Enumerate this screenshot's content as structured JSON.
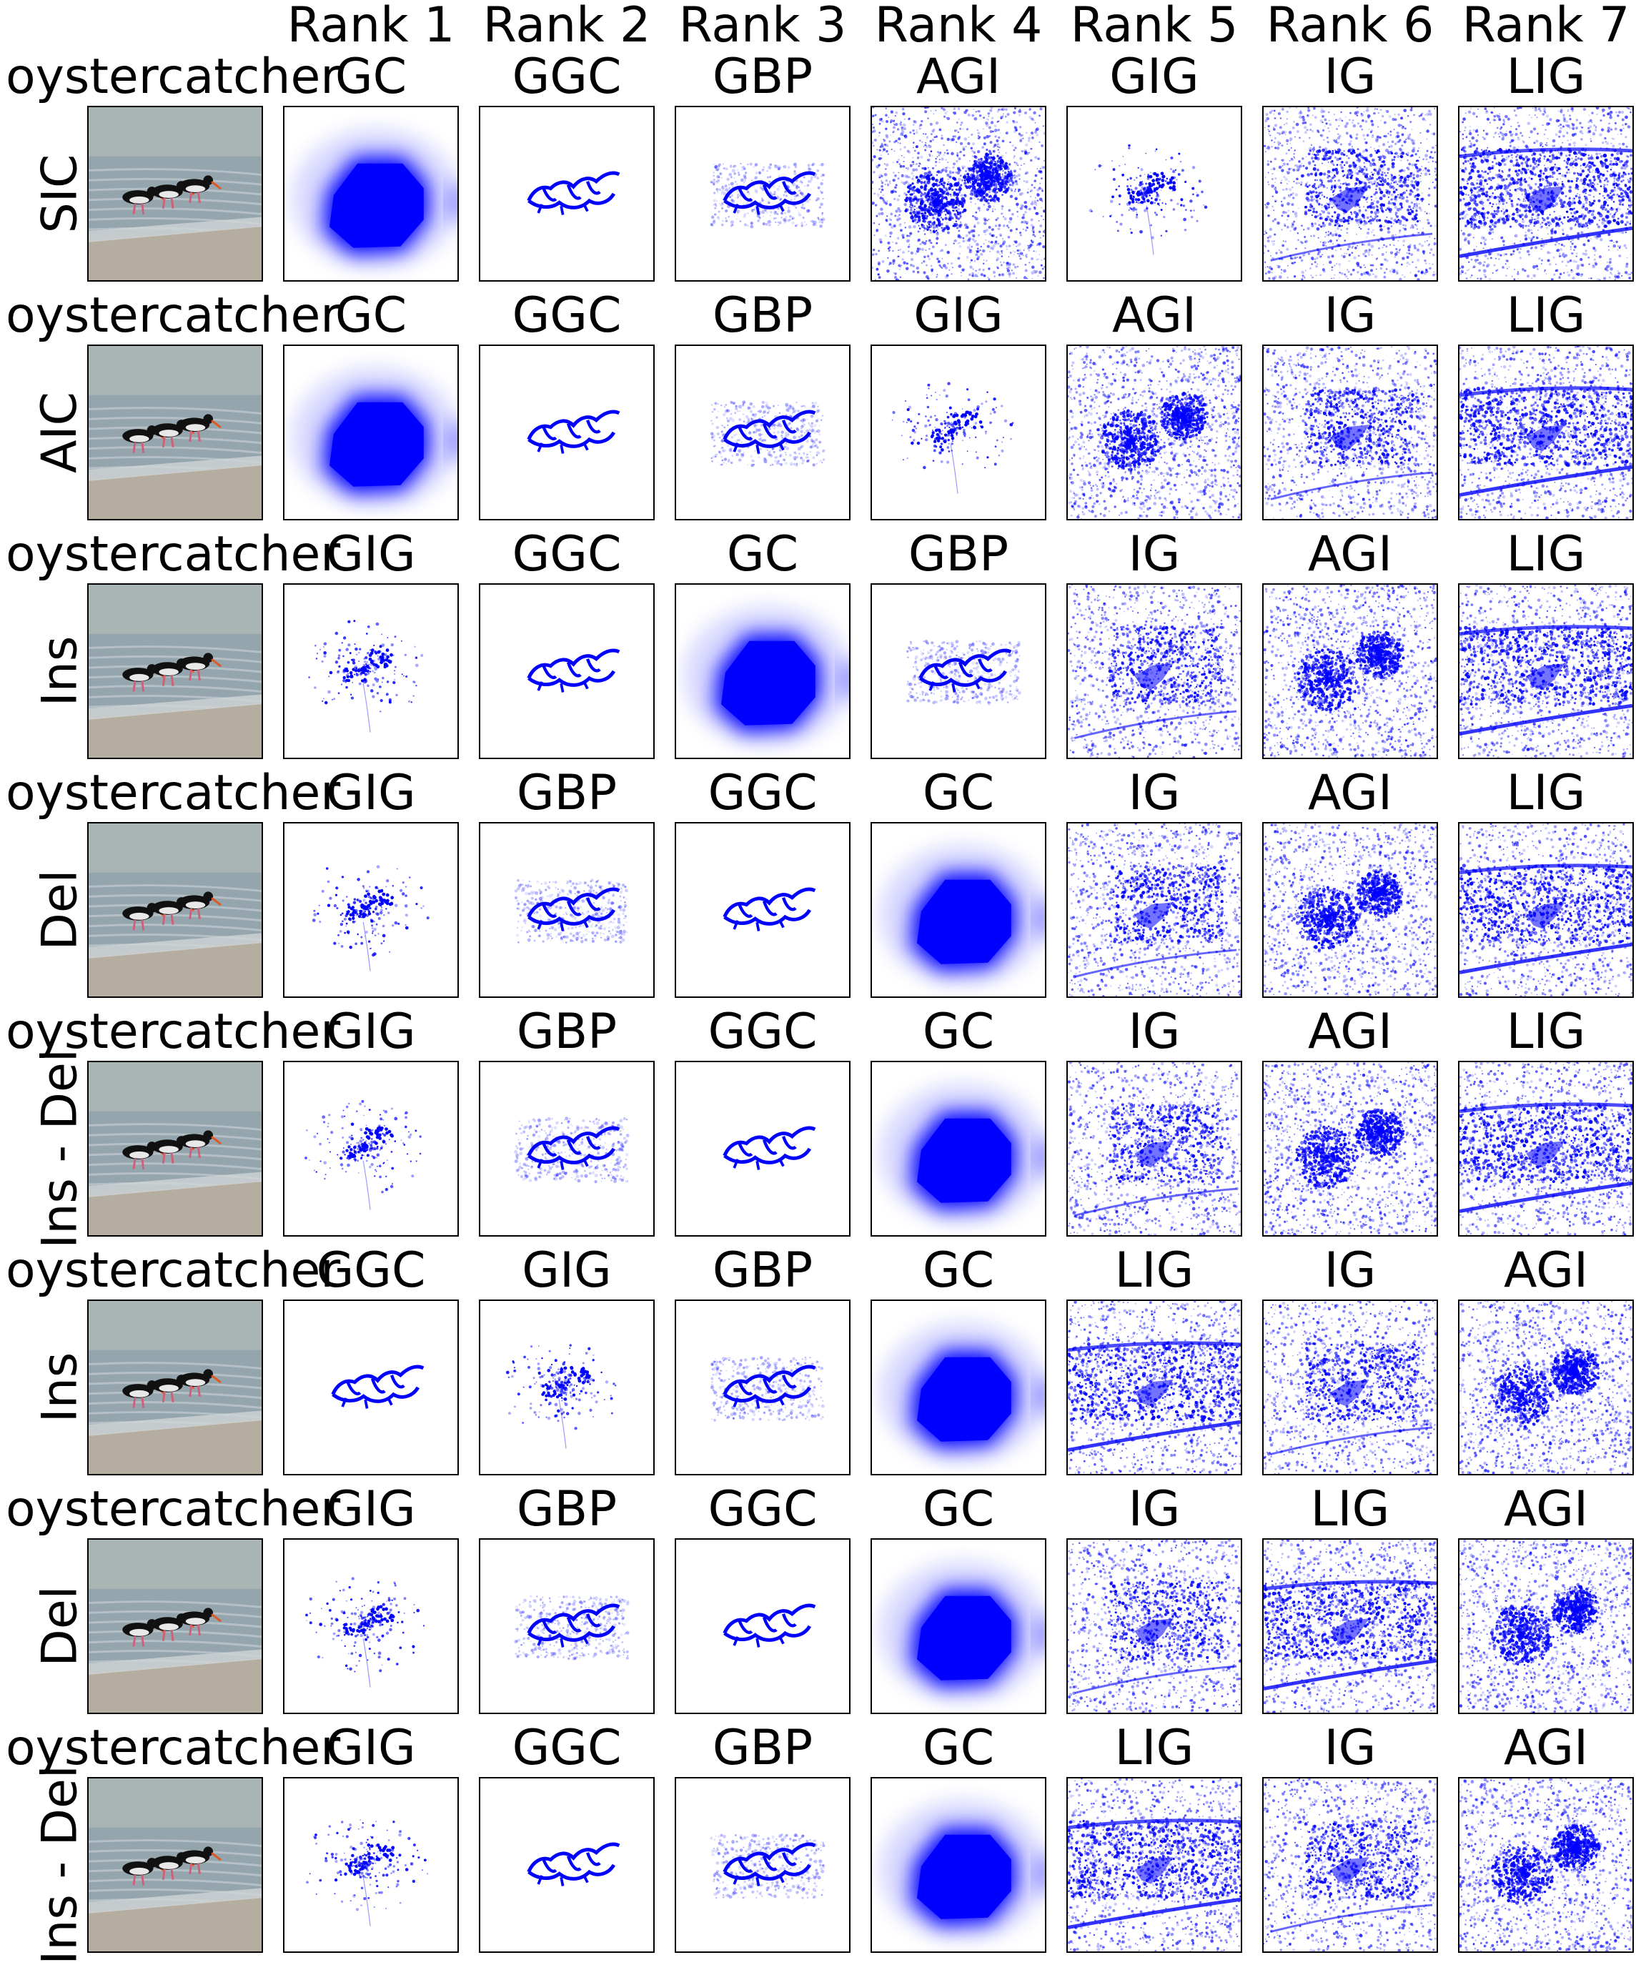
{
  "class_label": "oystercatcher",
  "rank_headers": [
    "Rank 1",
    "Rank 2",
    "Rank 3",
    "Rank 4",
    "Rank 5",
    "Rank 6",
    "Rank 7"
  ],
  "colors": {
    "saliency": "#0000ff",
    "background": "#ffffff",
    "frame": "#000000"
  },
  "rows": [
    {
      "metric": "SIC",
      "methods": [
        "GC",
        "GGC",
        "GBP",
        "AGI",
        "GIG",
        "IG",
        "LIG"
      ]
    },
    {
      "metric": "AIC",
      "methods": [
        "GC",
        "GGC",
        "GBP",
        "GIG",
        "AGI",
        "IG",
        "LIG"
      ]
    },
    {
      "metric": "Ins",
      "methods": [
        "GIG",
        "GGC",
        "GC",
        "GBP",
        "IG",
        "AGI",
        "LIG"
      ]
    },
    {
      "metric": "Del",
      "methods": [
        "GIG",
        "GBP",
        "GGC",
        "GC",
        "IG",
        "AGI",
        "LIG"
      ]
    },
    {
      "metric": "Ins - Del",
      "methods": [
        "GIG",
        "GBP",
        "GGC",
        "GC",
        "IG",
        "AGI",
        "LIG"
      ]
    },
    {
      "metric": "Ins",
      "methods": [
        "GGC",
        "GIG",
        "GBP",
        "GC",
        "LIG",
        "IG",
        "AGI"
      ]
    },
    {
      "metric": "Del",
      "methods": [
        "GIG",
        "GBP",
        "GGC",
        "GC",
        "IG",
        "LIG",
        "AGI"
      ]
    },
    {
      "metric": "Ins - Del",
      "methods": [
        "GIG",
        "GGC",
        "GBP",
        "GC",
        "LIG",
        "IG",
        "AGI"
      ]
    }
  ]
}
